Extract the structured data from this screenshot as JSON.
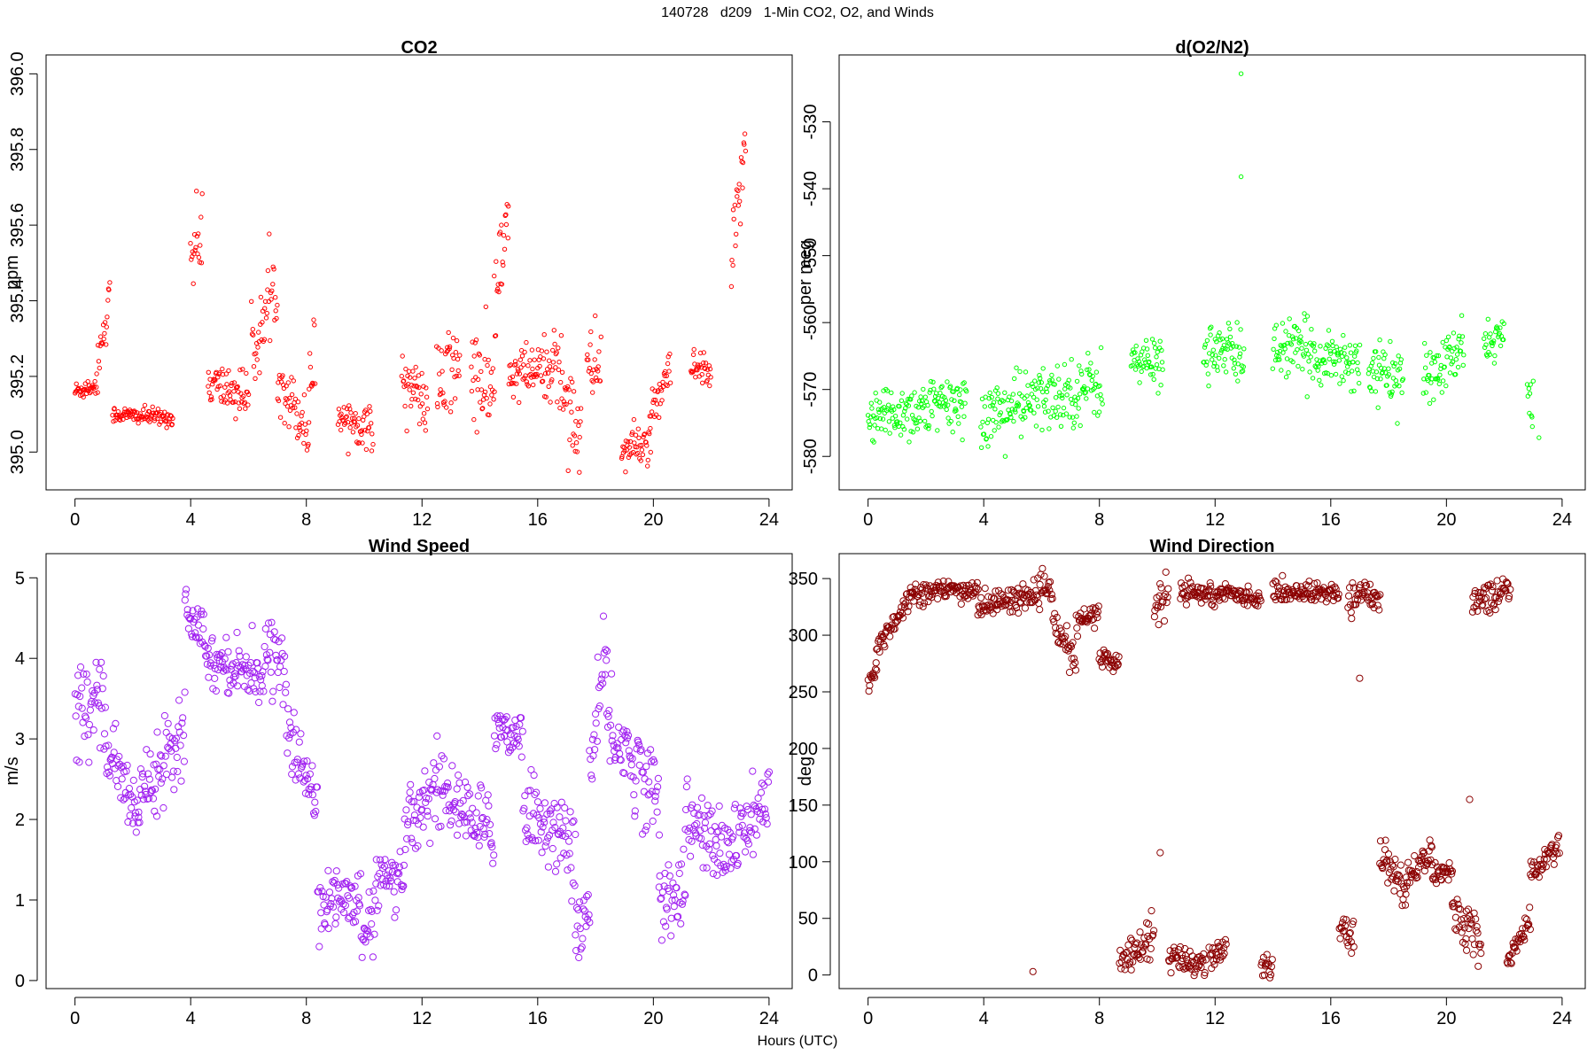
{
  "page": {
    "title": "140728   d209   1-Min CO2, O2, and Winds",
    "xlabel": "Hours (UTC)"
  },
  "chart_data": [
    {
      "type": "scatter",
      "title": "CO2",
      "ylabel": "ppm",
      "xlabel": "",
      "xlim": [
        -1.0,
        24.8
      ],
      "ylim": [
        394.9,
        396.05
      ],
      "xticks": [
        0,
        4,
        8,
        12,
        16,
        20,
        24
      ],
      "yticks": [
        395.0,
        395.2,
        395.4,
        395.6,
        395.8,
        396.0
      ],
      "ytick_labels": [
        "395.0",
        "395.2",
        "395.4",
        "395.6",
        "395.8",
        "396.0"
      ],
      "color": "#ff0000",
      "marker_size": "small",
      "segments": [
        {
          "x0": 0.0,
          "x1": 0.8,
          "ys": 395.16,
          "ye": 395.18,
          "noise": 0.025
        },
        {
          "x0": 0.8,
          "x1": 1.2,
          "ys": 395.25,
          "ye": 395.4,
          "noise": 0.06
        },
        {
          "x0": 1.3,
          "x1": 3.4,
          "ys": 395.1,
          "ye": 395.09,
          "noise": 0.02
        },
        {
          "x0": 4.0,
          "x1": 4.4,
          "ys": 395.5,
          "ye": 395.6,
          "noise": 0.1
        },
        {
          "x0": 4.6,
          "x1": 6.0,
          "ys": 395.18,
          "ye": 395.15,
          "noise": 0.06
        },
        {
          "x0": 6.1,
          "x1": 7.0,
          "ys": 395.25,
          "ye": 395.45,
          "noise": 0.09
        },
        {
          "x0": 7.0,
          "x1": 8.1,
          "ys": 395.2,
          "ye": 395.05,
          "noise": 0.07
        },
        {
          "x0": 8.1,
          "x1": 8.3,
          "ys": 395.2,
          "ye": 395.25,
          "noise": 0.1
        },
        {
          "x0": 9.1,
          "x1": 10.3,
          "ys": 395.1,
          "ye": 395.06,
          "noise": 0.05
        },
        {
          "x0": 11.3,
          "x1": 12.2,
          "ys": 395.2,
          "ye": 395.12,
          "noise": 0.07
        },
        {
          "x0": 12.5,
          "x1": 13.3,
          "ys": 395.15,
          "ye": 395.25,
          "noise": 0.12
        },
        {
          "x0": 13.7,
          "x1": 14.5,
          "ys": 395.2,
          "ye": 395.15,
          "noise": 0.12
        },
        {
          "x0": 14.5,
          "x1": 15.0,
          "ys": 395.4,
          "ye": 395.6,
          "noise": 0.12
        },
        {
          "x0": 15.0,
          "x1": 16.5,
          "ys": 395.2,
          "ye": 395.22,
          "noise": 0.07
        },
        {
          "x0": 16.5,
          "x1": 17.5,
          "ys": 395.25,
          "ye": 395.05,
          "noise": 0.12
        },
        {
          "x0": 17.7,
          "x1": 18.2,
          "ys": 395.2,
          "ye": 395.25,
          "noise": 0.1
        },
        {
          "x0": 18.9,
          "x1": 19.9,
          "ys": 395.0,
          "ye": 395.03,
          "noise": 0.05
        },
        {
          "x0": 19.9,
          "x1": 20.6,
          "ys": 395.08,
          "ye": 395.22,
          "noise": 0.05
        },
        {
          "x0": 21.3,
          "x1": 22.0,
          "ys": 395.22,
          "ye": 395.2,
          "noise": 0.05
        },
        {
          "x0": 22.7,
          "x1": 23.2,
          "ys": 395.45,
          "ye": 395.88,
          "noise": 0.1
        }
      ]
    },
    {
      "type": "scatter",
      "title": "d(O2/N2)",
      "ylabel": "per meg",
      "xlabel": "",
      "xlim": [
        -1.0,
        24.8
      ],
      "ylim": [
        -585,
        -520
      ],
      "xticks": [
        0,
        4,
        8,
        12,
        16,
        20,
        24
      ],
      "yticks": [
        -580,
        -570,
        -560,
        -550,
        -540,
        -530
      ],
      "ytick_labels": [
        "-580",
        "-570",
        "-560",
        "-550",
        "-540",
        "-530"
      ],
      "color": "#00ff00",
      "marker_size": "small",
      "outliers": [
        {
          "x": 12.9,
          "y": -522.8
        },
        {
          "x": 12.9,
          "y": -538.2
        },
        {
          "x": 23.2,
          "y": -577.2
        }
      ],
      "segments": [
        {
          "x0": 0.0,
          "x1": 3.4,
          "ys": -574.0,
          "ye": -572.0,
          "noise": 4.0
        },
        {
          "x0": 3.9,
          "x1": 8.1,
          "ys": -574.0,
          "ye": -569.0,
          "noise": 4.5
        },
        {
          "x0": 9.1,
          "x1": 10.2,
          "ys": -566.0,
          "ye": -566.0,
          "noise": 3.5
        },
        {
          "x0": 11.6,
          "x1": 13.0,
          "ys": -564.0,
          "ye": -565.0,
          "noise": 4.0
        },
        {
          "x0": 14.0,
          "x1": 17.0,
          "ys": -563.5,
          "ye": -566.0,
          "noise": 4.0
        },
        {
          "x0": 17.3,
          "x1": 18.5,
          "ys": -567.0,
          "ye": -568.0,
          "noise": 3.5
        },
        {
          "x0": 19.2,
          "x1": 20.6,
          "ys": -569.0,
          "ye": -564.0,
          "noise": 4.0
        },
        {
          "x0": 21.3,
          "x1": 22.0,
          "ys": -563.0,
          "ye": -562.0,
          "noise": 3.0
        },
        {
          "x0": 22.8,
          "x1": 23.0,
          "ys": -570.0,
          "ye": -575.0,
          "noise": 3.5
        }
      ]
    },
    {
      "type": "scatter",
      "title": "Wind Speed",
      "ylabel": "m/s",
      "xlabel": "",
      "xlim": [
        -1.0,
        24.8
      ],
      "ylim": [
        -0.1,
        5.3
      ],
      "xticks": [
        0,
        4,
        8,
        12,
        16,
        20,
        24
      ],
      "yticks": [
        0,
        1,
        2,
        3,
        4,
        5
      ],
      "ytick_labels": [
        "0",
        "1",
        "2",
        "3",
        "4",
        "5"
      ],
      "color": "#a020f0",
      "marker_size": "large",
      "segments": [
        {
          "x0": 0.0,
          "x1": 1.0,
          "ys": 3.4,
          "ye": 3.6,
          "noise": 0.55
        },
        {
          "x0": 1.0,
          "x1": 2.2,
          "ys": 3.0,
          "ye": 2.0,
          "noise": 0.35
        },
        {
          "x0": 2.2,
          "x1": 3.8,
          "ys": 2.3,
          "ye": 3.2,
          "noise": 0.45
        },
        {
          "x0": 3.8,
          "x1": 4.5,
          "ys": 4.6,
          "ye": 4.4,
          "noise": 0.3
        },
        {
          "x0": 4.5,
          "x1": 6.6,
          "ys": 4.0,
          "ye": 3.8,
          "noise": 0.3
        },
        {
          "x0": 6.6,
          "x1": 7.3,
          "ys": 4.2,
          "ye": 3.8,
          "noise": 0.35
        },
        {
          "x0": 7.3,
          "x1": 8.4,
          "ys": 3.1,
          "ye": 2.2,
          "noise": 0.4
        },
        {
          "x0": 8.4,
          "x1": 9.9,
          "ys": 1.0,
          "ye": 1.0,
          "noise": 0.35
        },
        {
          "x0": 9.9,
          "x1": 10.4,
          "ys": 0.5,
          "ye": 0.8,
          "noise": 0.35
        },
        {
          "x0": 10.4,
          "x1": 11.4,
          "ys": 1.3,
          "ye": 1.1,
          "noise": 0.3
        },
        {
          "x0": 11.4,
          "x1": 12.8,
          "ys": 2.0,
          "ye": 2.5,
          "noise": 0.5
        },
        {
          "x0": 12.8,
          "x1": 14.5,
          "ys": 2.3,
          "ye": 1.8,
          "noise": 0.4
        },
        {
          "x0": 14.5,
          "x1": 15.5,
          "ys": 3.2,
          "ye": 3.0,
          "noise": 0.3
        },
        {
          "x0": 15.5,
          "x1": 17.3,
          "ys": 2.2,
          "ye": 1.6,
          "noise": 0.45
        },
        {
          "x0": 17.3,
          "x1": 17.8,
          "ys": 0.5,
          "ye": 1.0,
          "noise": 0.35
        },
        {
          "x0": 17.8,
          "x1": 18.4,
          "ys": 2.5,
          "ye": 4.1,
          "noise": 0.5
        },
        {
          "x0": 18.4,
          "x1": 20.2,
          "ys": 3.2,
          "ye": 2.2,
          "noise": 0.5
        },
        {
          "x0": 20.2,
          "x1": 21.1,
          "ys": 1.0,
          "ye": 1.2,
          "noise": 0.45
        },
        {
          "x0": 21.1,
          "x1": 22.2,
          "ys": 2.0,
          "ye": 1.7,
          "noise": 0.45
        },
        {
          "x0": 22.2,
          "x1": 24.0,
          "ys": 1.5,
          "ye": 2.2,
          "noise": 0.45
        }
      ]
    },
    {
      "type": "scatter",
      "title": "Wind Direction",
      "ylabel": "deg",
      "xlabel": "",
      "xlim": [
        -1.0,
        24.8
      ],
      "ylim": [
        -12,
        372
      ],
      "xticks": [
        0,
        4,
        8,
        12,
        16,
        20,
        24
      ],
      "yticks": [
        0,
        50,
        100,
        150,
        200,
        250,
        300,
        350
      ],
      "ytick_labels": [
        "0",
        "50",
        "100",
        "150",
        "200",
        "250",
        "300",
        "350"
      ],
      "color": "#8b0000",
      "marker_size": "large",
      "outliers": [
        {
          "x": 5.7,
          "y": 3
        },
        {
          "x": 10.1,
          "y": 108
        },
        {
          "x": 20.8,
          "y": 155
        },
        {
          "x": 17.0,
          "y": 262
        }
      ],
      "segments": [
        {
          "x0": 0.0,
          "x1": 0.3,
          "ys": 255,
          "ye": 270,
          "noise": 8
        },
        {
          "x0": 0.3,
          "x1": 1.5,
          "ys": 290,
          "ye": 335,
          "noise": 10
        },
        {
          "x0": 1.5,
          "x1": 3.8,
          "ys": 338,
          "ye": 340,
          "noise": 9
        },
        {
          "x0": 3.8,
          "x1": 6.4,
          "ys": 325,
          "ye": 340,
          "noise": 10
        },
        {
          "x0": 6.4,
          "x1": 7.2,
          "ys": 310,
          "ye": 275,
          "noise": 12
        },
        {
          "x0": 7.2,
          "x1": 8.0,
          "ys": 310,
          "ye": 320,
          "noise": 10
        },
        {
          "x0": 8.0,
          "x1": 8.7,
          "ys": 280,
          "ye": 275,
          "noise": 8
        },
        {
          "x0": 8.7,
          "x1": 9.9,
          "ys": 10,
          "ye": 40,
          "noise": 14
        },
        {
          "x0": 9.9,
          "x1": 10.4,
          "ys": 320,
          "ye": 340,
          "noise": 18
        },
        {
          "x0": 10.4,
          "x1": 11.7,
          "ys": 15,
          "ye": 10,
          "noise": 12
        },
        {
          "x0": 10.8,
          "x1": 12.3,
          "ys": 340,
          "ye": 335,
          "noise": 10
        },
        {
          "x0": 11.8,
          "x1": 12.4,
          "ys": 15,
          "ye": 25,
          "noise": 10
        },
        {
          "x0": 12.3,
          "x1": 13.6,
          "ys": 338,
          "ye": 332,
          "noise": 7
        },
        {
          "x0": 13.6,
          "x1": 14.0,
          "ys": 10,
          "ye": 5,
          "noise": 8
        },
        {
          "x0": 14.0,
          "x1": 16.3,
          "ys": 338,
          "ye": 338,
          "noise": 8
        },
        {
          "x0": 16.3,
          "x1": 16.8,
          "ys": 40,
          "ye": 30,
          "noise": 15
        },
        {
          "x0": 16.6,
          "x1": 17.7,
          "ys": 335,
          "ye": 335,
          "noise": 12
        },
        {
          "x0": 17.7,
          "x1": 18.6,
          "ys": 110,
          "ye": 70,
          "noise": 15
        },
        {
          "x0": 18.6,
          "x1": 19.5,
          "ys": 85,
          "ye": 110,
          "noise": 12
        },
        {
          "x0": 19.5,
          "x1": 20.2,
          "ys": 90,
          "ye": 88,
          "noise": 8
        },
        {
          "x0": 20.2,
          "x1": 20.7,
          "ys": 70,
          "ye": 30,
          "noise": 15
        },
        {
          "x0": 20.7,
          "x1": 21.2,
          "ys": 60,
          "ye": 20,
          "noise": 20
        },
        {
          "x0": 20.9,
          "x1": 22.2,
          "ys": 330,
          "ye": 340,
          "noise": 12
        },
        {
          "x0": 22.1,
          "x1": 22.9,
          "ys": 10,
          "ye": 50,
          "noise": 10
        },
        {
          "x0": 22.9,
          "x1": 23.9,
          "ys": 90,
          "ye": 115,
          "noise": 10
        }
      ]
    }
  ]
}
